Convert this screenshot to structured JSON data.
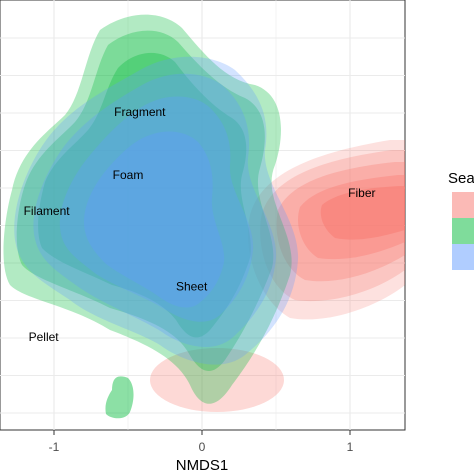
{
  "chart_data": {
    "type": "density-contour",
    "xlabel": "NMDS1",
    "ylabel": "",
    "xlim": [
      -1.35,
      1.35
    ],
    "x_ticks": [
      {
        "value": -1,
        "label": "-1"
      },
      {
        "value": 0,
        "label": "0"
      },
      {
        "value": 1,
        "label": "1"
      }
    ],
    "grid": true,
    "legend": {
      "position": "right",
      "title": "Sea",
      "swatches": [
        "#f8766d",
        "#00ba38",
        "#619cff"
      ]
    },
    "series_colors": [
      "#f8766d",
      "#00ba38",
      "#619cff"
    ],
    "annotations": [
      {
        "label": "Fragment",
        "x": -0.42,
        "y": 0.55
      },
      {
        "label": "Foam",
        "x": -0.5,
        "y": 0.2
      },
      {
        "label": "Filament",
        "x": -1.05,
        "y": 0.0
      },
      {
        "label": "Fiber",
        "x": 1.08,
        "y": 0.1
      },
      {
        "label": "Sheet",
        "x": -0.07,
        "y": -0.42
      },
      {
        "label": "Pellet",
        "x": -1.07,
        "y": -0.7
      }
    ]
  }
}
